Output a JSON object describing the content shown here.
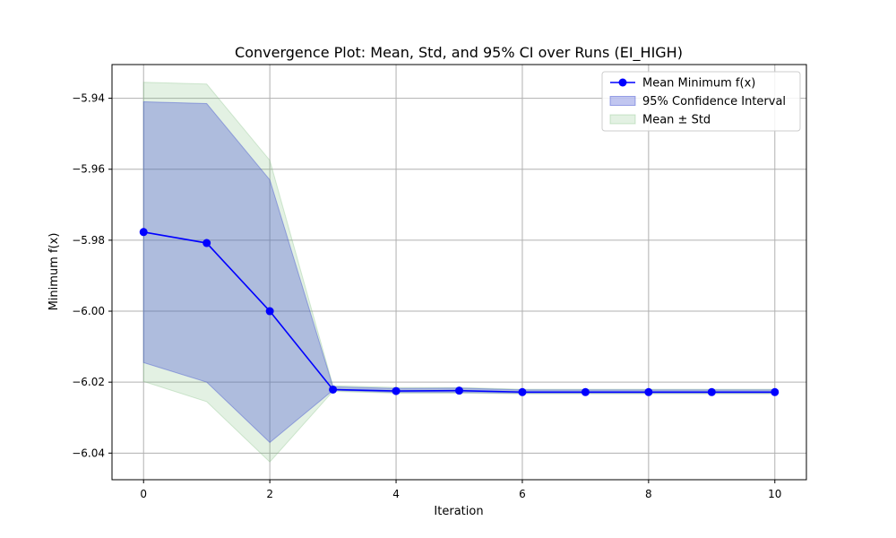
{
  "chart_data": {
    "type": "line",
    "title": "Convergence Plot: Mean, Std, and 95% CI over Runs (EI_HIGH)",
    "xlabel": "Iteration",
    "ylabel": "Minimum f(x)",
    "xlim": [
      -0.5,
      10.5
    ],
    "ylim": [
      -6.0475,
      -5.9305
    ],
    "grid": true,
    "legend_position": "upper-right",
    "x": [
      0,
      1,
      2,
      3,
      4,
      5,
      6,
      7,
      8,
      9,
      10
    ],
    "x_ticks": [
      "0",
      "2",
      "4",
      "6",
      "8",
      "10"
    ],
    "x_tick_values": [
      0,
      2,
      4,
      6,
      8,
      10
    ],
    "y_ticks": [
      "−5.94",
      "−5.96",
      "−5.98",
      "−6.00",
      "−6.02",
      "−6.04"
    ],
    "y_tick_values": [
      -5.94,
      -5.96,
      -5.98,
      -6.0,
      -6.02,
      -6.04
    ],
    "series": [
      {
        "name": "Mean Minimum f(x)",
        "kind": "line",
        "color": "#0000ff",
        "values": [
          -5.9777,
          -5.9808,
          -6.0,
          -6.0221,
          -6.0225,
          -6.0224,
          -6.0228,
          -6.0228,
          -6.0228,
          -6.0228,
          -6.0228
        ]
      },
      {
        "name": "95% Confidence Interval",
        "kind": "band",
        "color": "#3f4fd0",
        "lower": [
          -6.0145,
          -6.02,
          -6.037,
          -6.0223,
          -6.0229,
          -6.0229,
          -6.0231,
          -6.0231,
          -6.0231,
          -6.0231,
          -6.0231
        ],
        "upper": [
          -5.941,
          -5.9415,
          -5.963,
          -6.0213,
          -6.0218,
          -6.0217,
          -6.0222,
          -6.0222,
          -6.0222,
          -6.0222,
          -6.0222
        ]
      },
      {
        "name": "Mean ± Std",
        "kind": "band",
        "color": "#7fbf7f",
        "lower": [
          -6.0198,
          -6.0255,
          -6.0425,
          -6.0226,
          -6.0231,
          -6.0231,
          -6.0233,
          -6.0233,
          -6.0233,
          -6.0233,
          -6.0233
        ],
        "upper": [
          -5.9355,
          -5.936,
          -5.9575,
          -6.021,
          -6.0215,
          -6.0215,
          -6.022,
          -6.022,
          -6.022,
          -6.022,
          -6.022
        ]
      }
    ]
  }
}
